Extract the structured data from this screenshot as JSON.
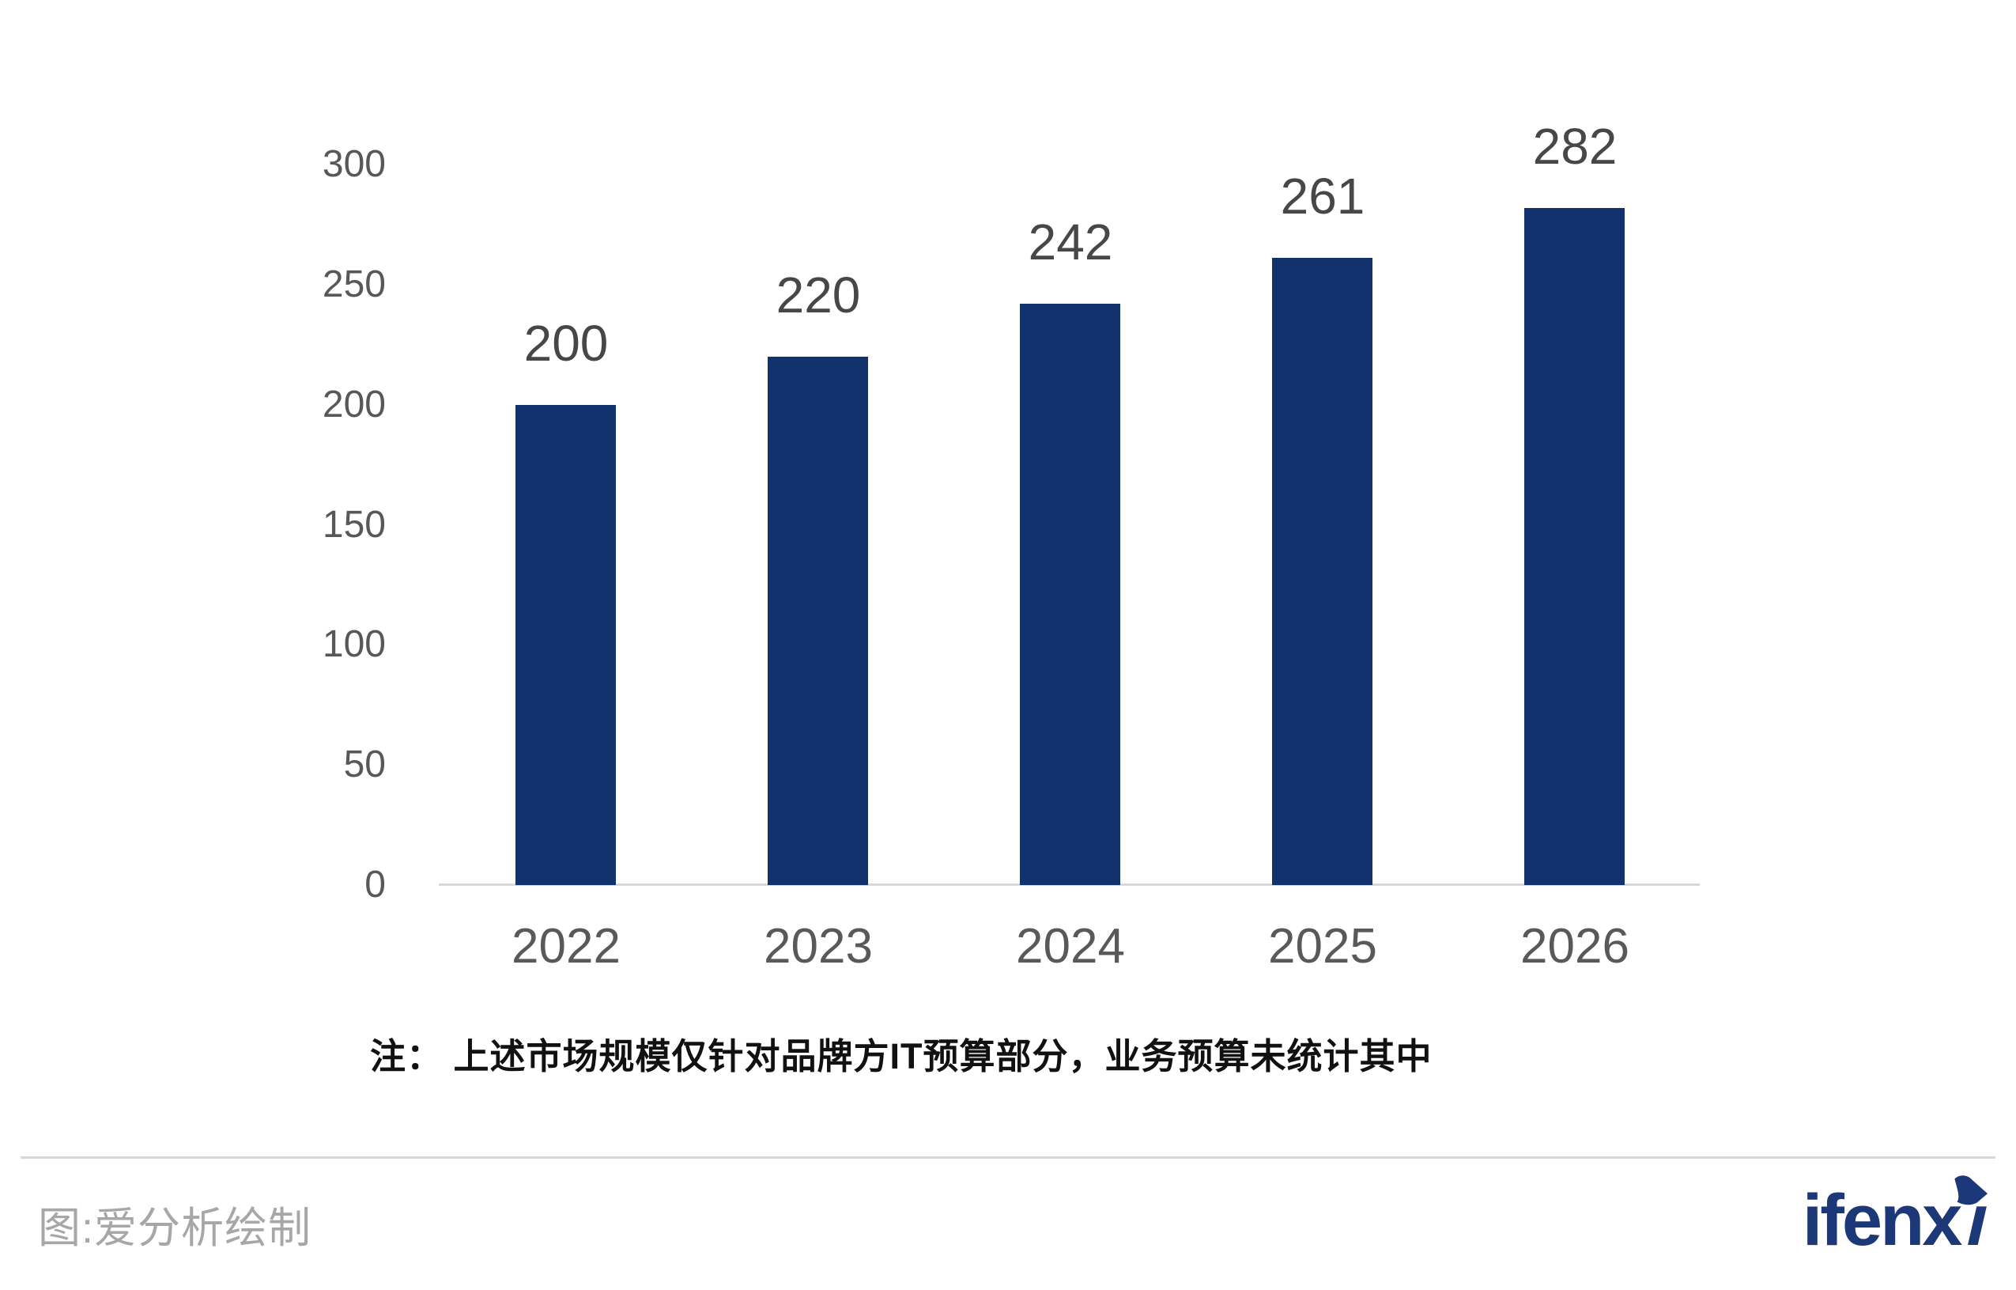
{
  "chart_data": {
    "type": "bar",
    "title": "",
    "categories": [
      "2022",
      "2023",
      "2024",
      "2025",
      "2026"
    ],
    "values": [
      200,
      220,
      242,
      261,
      282
    ],
    "xlabel": "",
    "ylabel": "",
    "ylim": [
      0,
      300
    ],
    "yticks": [
      0,
      50,
      100,
      150,
      200,
      250,
      300
    ],
    "grid": false,
    "legend": "none",
    "bar_color": "#12326e",
    "value_labels_shown": true
  },
  "colors": {
    "bar": "#12326e",
    "value_label": "#474747",
    "axis_tick_label": "#585858",
    "x_tick_label": "#595959",
    "axis_line": "#d9d9d9",
    "note_text": "#111111",
    "divider": "#d7d7d7",
    "caption_text": "#a7a7a7",
    "logo": "#1c3878",
    "background": "#ffffff"
  },
  "note": {
    "text": "注： 上述市场规模仅针对品牌方IT预算部分，业务预算未统计其中"
  },
  "footer": {
    "caption": "图:爱分析绘制",
    "logo_text": "ifenxi"
  }
}
